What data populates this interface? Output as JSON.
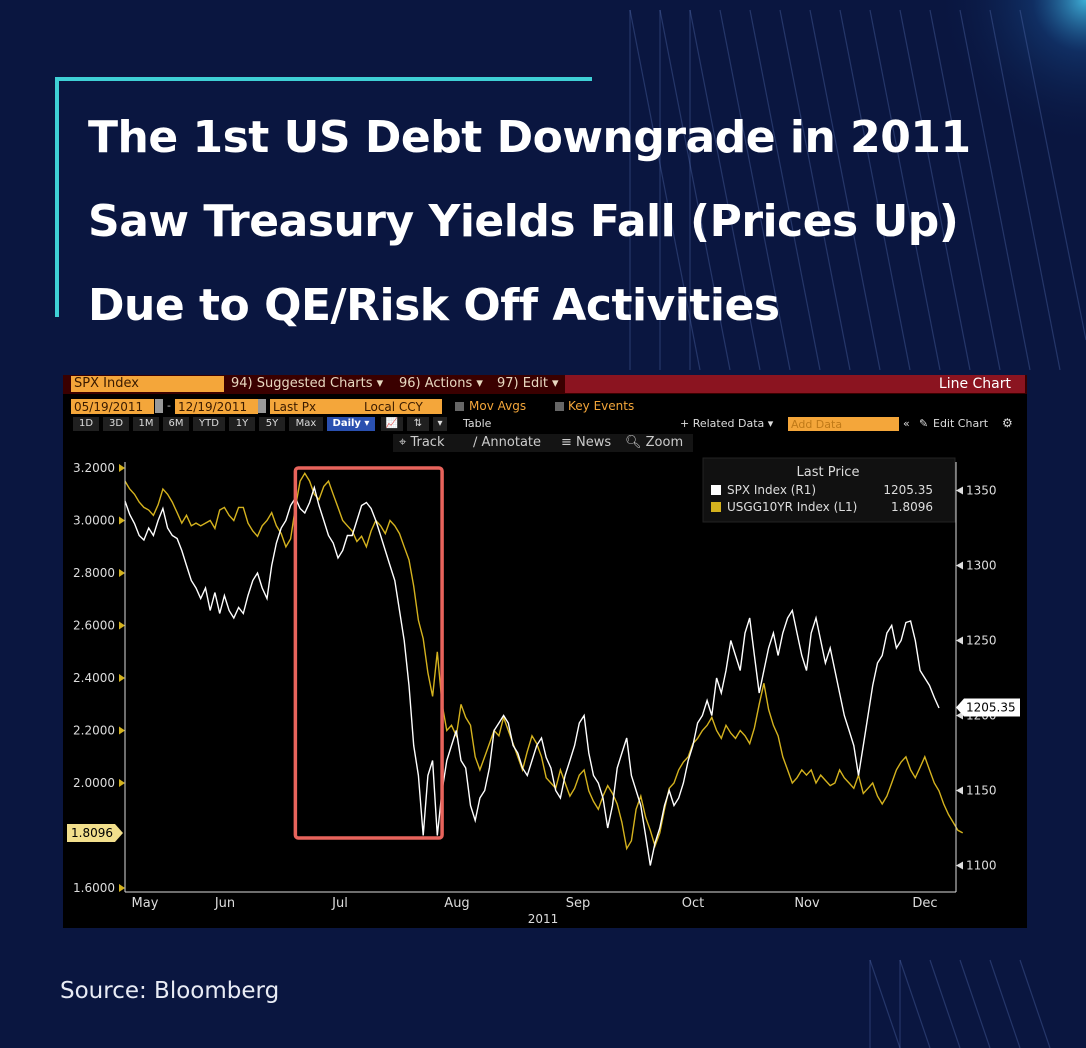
{
  "headline": {
    "lines": [
      "The 1st US Debt Downgrade in 2011",
      "Saw Treasury Yields Fall (Prices Up)",
      "Due to QE/Risk Off Activities"
    ]
  },
  "source": "Source: Bloomberg",
  "terminal": {
    "security": "SPX Index",
    "menu": [
      "94) Suggested Charts ▾",
      "96) Actions ▾",
      "97) Edit ▾"
    ],
    "chart_type": "Line Chart",
    "start_date": "05/19/2011",
    "end_date": "12/19/2011",
    "field": "Last Px",
    "currency": "Local CCY",
    "mov_avgs": "Mov Avgs",
    "key_events": "Key Events",
    "periods": [
      "1D",
      "3D",
      "1M",
      "6M",
      "YTD",
      "1Y",
      "5Y",
      "Max"
    ],
    "frequency": "Daily ▾",
    "table": "Table",
    "related_data": "+ Related Data ▾",
    "add_data_placeholder": "Add Data",
    "edit_chart": "Edit Chart",
    "tools": [
      "Track",
      "Annotate",
      "News",
      "Zoom"
    ]
  },
  "colors": {
    "background": "#0a1640",
    "accent": "#3fd0d6",
    "spx": "#ffffff",
    "usgg": "#d4b21e",
    "highlight": "#e8645c"
  },
  "chart_data": {
    "type": "line",
    "title": "",
    "x_tick_labels": [
      "May",
      "Jun",
      "Jul",
      "Aug",
      "Sep",
      "Oct",
      "Nov",
      "Dec"
    ],
    "x_axis_label": "2011",
    "left_axis": {
      "ticks": [
        "3.2000",
        "3.0000",
        "2.8000",
        "2.6000",
        "2.4000",
        "2.2000",
        "2.0000",
        "1.6000"
      ],
      "ylim": [
        1.6,
        3.2
      ]
    },
    "right_axis": {
      "ticks": [
        "1350",
        "1300",
        "1250",
        "1200",
        "1150",
        "1100"
      ],
      "ylim": [
        1085,
        1365
      ]
    },
    "legend": {
      "title": "Last Price",
      "position": "top-right"
    },
    "series": [
      {
        "name": "SPX Index  (R1)",
        "last": "1205.35",
        "axis": "right",
        "color": "#ffffff",
        "values": [
          1343,
          1334,
          1328,
          1320,
          1317,
          1325,
          1320,
          1330,
          1338,
          1325,
          1320,
          1318,
          1310,
          1300,
          1290,
          1285,
          1278,
          1285,
          1270,
          1282,
          1268,
          1280,
          1270,
          1265,
          1272,
          1268,
          1280,
          1290,
          1295,
          1285,
          1278,
          1300,
          1315,
          1325,
          1330,
          1340,
          1345,
          1338,
          1335,
          1342,
          1352,
          1340,
          1330,
          1320,
          1315,
          1305,
          1310,
          1320,
          1320,
          1330,
          1340,
          1342,
          1338,
          1330,
          1320,
          1310,
          1300,
          1290,
          1270,
          1250,
          1220,
          1180,
          1160,
          1120,
          1160,
          1170,
          1120,
          1150,
          1170,
          1180,
          1190,
          1170,
          1165,
          1140,
          1130,
          1145,
          1150,
          1165,
          1190,
          1195,
          1200,
          1195,
          1180,
          1175,
          1165,
          1160,
          1170,
          1180,
          1185,
          1172,
          1165,
          1150,
          1145,
          1160,
          1170,
          1180,
          1195,
          1200,
          1175,
          1160,
          1155,
          1145,
          1125,
          1140,
          1165,
          1175,
          1185,
          1160,
          1150,
          1140,
          1120,
          1100,
          1115,
          1125,
          1140,
          1150,
          1140,
          1145,
          1155,
          1170,
          1180,
          1195,
          1200,
          1210,
          1200,
          1225,
          1215,
          1230,
          1250,
          1240,
          1230,
          1255,
          1265,
          1240,
          1215,
          1230,
          1245,
          1255,
          1240,
          1255,
          1265,
          1270,
          1255,
          1240,
          1230,
          1255,
          1265,
          1250,
          1235,
          1245,
          1230,
          1215,
          1200,
          1190,
          1180,
          1160,
          1180,
          1200,
          1220,
          1235,
          1240,
          1255,
          1260,
          1245,
          1250,
          1262,
          1263,
          1250,
          1230,
          1225,
          1220,
          1212,
          1205
        ]
      },
      {
        "name": "USGG10YR Index  (L1)",
        "last": "1.8096",
        "axis": "left",
        "color": "#d4b21e",
        "values": [
          3.15,
          3.12,
          3.1,
          3.07,
          3.05,
          3.04,
          3.02,
          3.06,
          3.12,
          3.1,
          3.07,
          3.03,
          2.99,
          3.02,
          2.98,
          2.99,
          2.98,
          2.99,
          3.0,
          2.97,
          3.04,
          3.05,
          3.02,
          3.0,
          3.05,
          3.05,
          2.99,
          2.96,
          2.94,
          2.98,
          3.0,
          3.03,
          2.98,
          2.95,
          2.9,
          2.93,
          3.05,
          3.15,
          3.18,
          3.15,
          3.1,
          3.08,
          3.13,
          3.15,
          3.1,
          3.05,
          3.0,
          2.98,
          2.96,
          2.92,
          2.94,
          2.9,
          2.96,
          3.0,
          2.98,
          2.95,
          3.0,
          2.98,
          2.95,
          2.9,
          2.85,
          2.75,
          2.62,
          2.55,
          2.42,
          2.33,
          2.5,
          2.3,
          2.2,
          2.22,
          2.18,
          2.3,
          2.25,
          2.22,
          2.1,
          2.05,
          2.1,
          2.15,
          2.2,
          2.18,
          2.25,
          2.2,
          2.15,
          2.1,
          2.05,
          2.12,
          2.18,
          2.15,
          2.1,
          2.02,
          2.0,
          1.98,
          2.05,
          2.0,
          1.95,
          1.98,
          2.03,
          2.05,
          1.97,
          1.93,
          1.9,
          1.95,
          1.99,
          1.96,
          1.92,
          1.85,
          1.75,
          1.78,
          1.9,
          1.95,
          1.87,
          1.82,
          1.76,
          1.81,
          1.9,
          1.98,
          2.0,
          2.05,
          2.08,
          2.1,
          2.15,
          2.17,
          2.2,
          2.22,
          2.25,
          2.2,
          2.17,
          2.22,
          2.19,
          2.17,
          2.2,
          2.18,
          2.15,
          2.21,
          2.3,
          2.38,
          2.28,
          2.22,
          2.18,
          2.1,
          2.05,
          2.0,
          2.02,
          2.05,
          2.03,
          2.05,
          2.0,
          2.03,
          2.01,
          1.99,
          2.0,
          2.05,
          2.02,
          2.0,
          1.98,
          2.03,
          1.96,
          1.98,
          2.0,
          1.95,
          1.92,
          1.95,
          2.0,
          2.05,
          2.08,
          2.1,
          2.05,
          2.02,
          2.06,
          2.1,
          2.05,
          2.0,
          1.97,
          1.92,
          1.88,
          1.85,
          1.82,
          1.81
        ]
      }
    ],
    "highlight": {
      "label": "",
      "from_index": 36,
      "to_index": 67
    }
  }
}
